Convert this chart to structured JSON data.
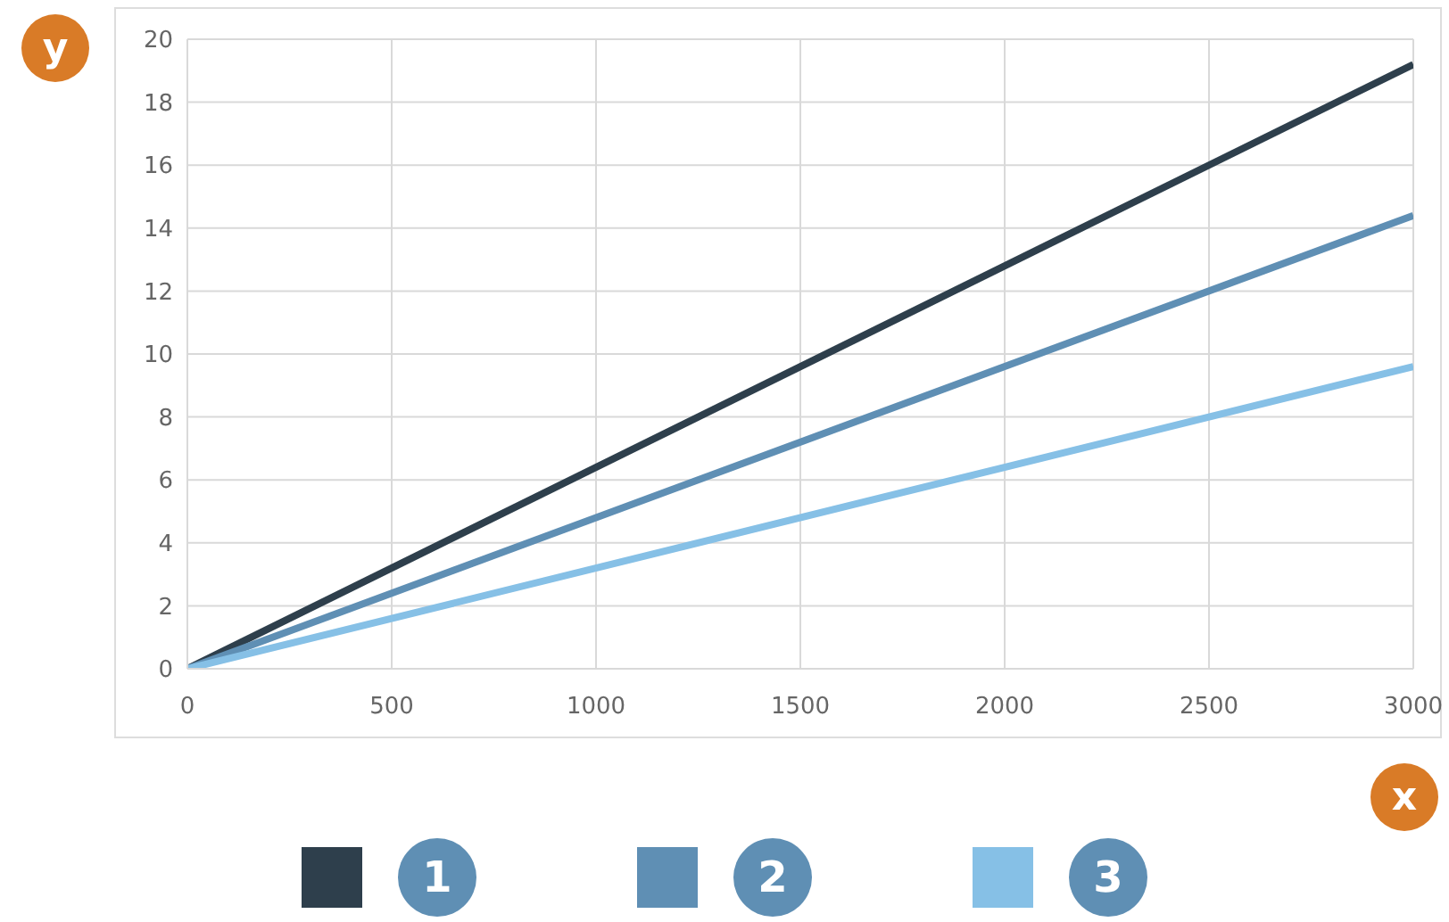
{
  "chart_data": {
    "type": "line",
    "xlabel": "x",
    "ylabel": "y",
    "x": [
      0,
      3000
    ],
    "series": [
      {
        "name": "1",
        "color": "#2e3f4c",
        "values": [
          0,
          19.2
        ]
      },
      {
        "name": "2",
        "color": "#5f8fb4",
        "values": [
          0,
          14.4
        ]
      },
      {
        "name": "3",
        "color": "#86c0e6",
        "values": [
          0,
          9.6
        ]
      }
    ],
    "xlim": [
      0,
      3000
    ],
    "xticks": [
      0,
      500,
      1000,
      1500,
      2000,
      2500,
      3000
    ],
    "ylim": [
      0,
      20
    ],
    "yticks": [
      0,
      2,
      4,
      6,
      8,
      10,
      12,
      14,
      16,
      18,
      20
    ],
    "grid": true,
    "legend": "bottom",
    "marker": "none",
    "line_style": "solid"
  }
}
